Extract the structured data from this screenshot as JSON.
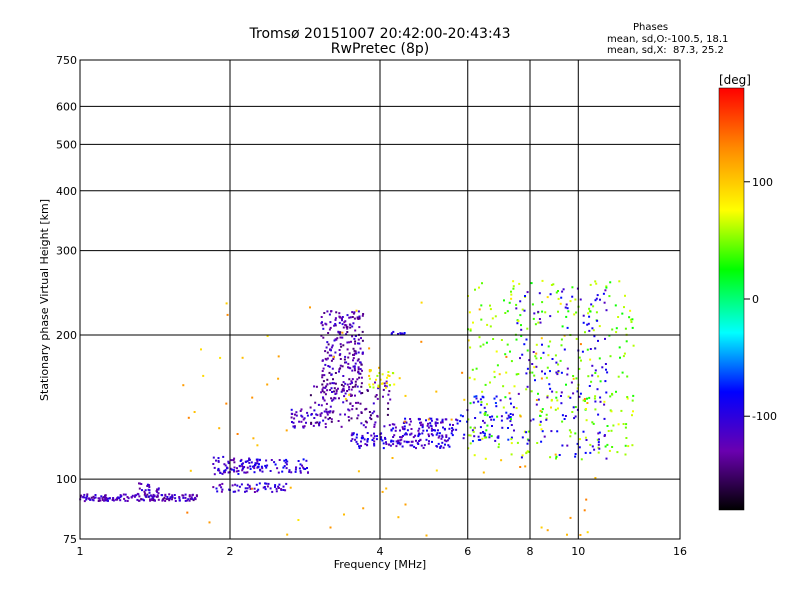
{
  "chart_data": {
    "type": "scatter",
    "title": "Tromsø 20151007 20:42:00-20:43:43",
    "subtitle": "RwPretec (8p)",
    "xlabel": "Frequency [MHz]",
    "ylabel": "Stationary phase Virtual Height [km]",
    "x_scale": "log",
    "y_scale": "log",
    "xlim": [
      1,
      16
    ],
    "ylim": [
      75,
      750
    ],
    "x_ticks": [
      1,
      2,
      4,
      6,
      8,
      10,
      16
    ],
    "y_ticks": [
      75,
      100,
      200,
      300,
      400,
      500,
      600,
      750
    ],
    "grid": true,
    "colorbar": {
      "label": "[deg]",
      "range": [
        -180,
        180
      ],
      "ticks": [
        100,
        0,
        -100
      ]
    },
    "phases_info": {
      "heading": "Phases",
      "line1": "mean, sd,O:-100.5, 18.1",
      "line2": "mean, sd,X:  87.3, 25.2"
    },
    "clusters": [
      {
        "x": [
          1.0,
          1.72
        ],
        "y": [
          90,
          93
        ],
        "phase": -120,
        "n": 160
      },
      {
        "x": [
          1.3,
          1.45
        ],
        "y": [
          92,
          98
        ],
        "phase": -115,
        "n": 25
      },
      {
        "x": [
          1.85,
          2.3
        ],
        "y": [
          102,
          112
        ],
        "phase": -110,
        "n": 70
      },
      {
        "x": [
          1.85,
          2.6
        ],
        "y": [
          94,
          98
        ],
        "phase": -110,
        "n": 55
      },
      {
        "x": [
          2.1,
          2.9
        ],
        "y": [
          103,
          110
        ],
        "phase": -100,
        "n": 60
      },
      {
        "x": [
          2.65,
          3.2
        ],
        "y": [
          128,
          140
        ],
        "phase": -115,
        "n": 50
      },
      {
        "x": [
          3.05,
          3.7
        ],
        "y": [
          150,
          225
        ],
        "phase": -125,
        "n": 230
      },
      {
        "x": [
          2.9,
          4.2
        ],
        "y": [
          128,
          160
        ],
        "phase": -130,
        "n": 120
      },
      {
        "x": [
          3.5,
          5.6
        ],
        "y": [
          116,
          125
        ],
        "phase": -105,
        "n": 140
      },
      {
        "x": [
          4.2,
          5.8
        ],
        "y": [
          126,
          134
        ],
        "phase": -105,
        "n": 80
      },
      {
        "x": [
          5.8,
          7.5
        ],
        "y": [
          120,
          150
        ],
        "phase": -90,
        "n": 70
      },
      {
        "x": [
          3.8,
          4.3
        ],
        "y": [
          155,
          170
        ],
        "phase": 80,
        "n": 30
      },
      {
        "x": [
          6.0,
          13.0
        ],
        "y": [
          110,
          260
        ],
        "phase": 50,
        "n": 300
      },
      {
        "x": [
          7.5,
          11.5
        ],
        "y": [
          110,
          250
        ],
        "phase": -100,
        "n": 150
      },
      {
        "x": [
          1.6,
          11.0
        ],
        "y": [
          76,
          240
        ],
        "phase": 110,
        "n": 90
      },
      {
        "x": [
          4.2,
          4.5
        ],
        "y": [
          199,
          203
        ],
        "phase": -95,
        "n": 10
      }
    ]
  }
}
